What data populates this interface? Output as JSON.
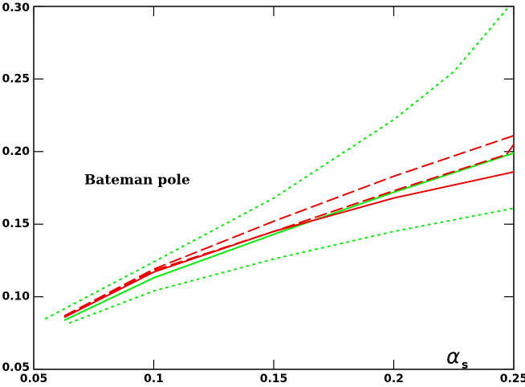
{
  "chart_data": {
    "type": "line",
    "annotation": "Bateman pole",
    "xlabel": "α",
    "xlabel_sub": "s",
    "xlim": [
      0.05,
      0.25
    ],
    "ylim": [
      0.05,
      0.3
    ],
    "xticks": [
      0.05,
      0.1,
      0.15,
      0.2,
      0.25
    ],
    "yticks": [
      0.05,
      {
        "value": 0.1,
        "label": "0.10"
      },
      0.15,
      {
        "value": 0.2,
        "label": "0.20"
      },
      0.25,
      {
        "value": 0.3,
        "label": "0.30"
      }
    ],
    "series": [
      {
        "color": "#00ee00",
        "dash": "solid",
        "x": [
          0.063,
          0.1,
          0.15,
          0.2,
          0.25
        ],
        "y": [
          0.084,
          0.113,
          0.143,
          0.172,
          0.199
        ]
      },
      {
        "color": "#00ee00",
        "dash": "dotted",
        "x": [
          0.055,
          0.1,
          0.15,
          0.2,
          0.225,
          0.248
        ],
        "y": [
          0.085,
          0.124,
          0.168,
          0.222,
          0.255,
          0.3
        ]
      },
      {
        "color": "#00ee00",
        "dash": "dotted",
        "x": [
          0.065,
          0.1,
          0.15,
          0.2,
          0.25
        ],
        "y": [
          0.082,
          0.104,
          0.126,
          0.145,
          0.161
        ]
      },
      {
        "color": "#ee0000",
        "dash": "solid",
        "x": [
          0.063,
          0.1,
          0.15,
          0.2,
          0.25
        ],
        "y": [
          0.086,
          0.117,
          0.145,
          0.168,
          0.186
        ]
      },
      {
        "color": "#ee0000",
        "dash": "dashed",
        "x": [
          0.063,
          0.1,
          0.15,
          0.2,
          0.25
        ],
        "y": [
          0.087,
          0.119,
          0.152,
          0.183,
          0.211
        ]
      },
      {
        "color": "#ee0000",
        "dash": "dashed",
        "x": [
          0.063,
          0.1,
          0.15,
          0.2,
          0.247,
          0.25
        ],
        "y": [
          0.087,
          0.118,
          0.145,
          0.173,
          0.198,
          0.205
        ]
      }
    ]
  }
}
